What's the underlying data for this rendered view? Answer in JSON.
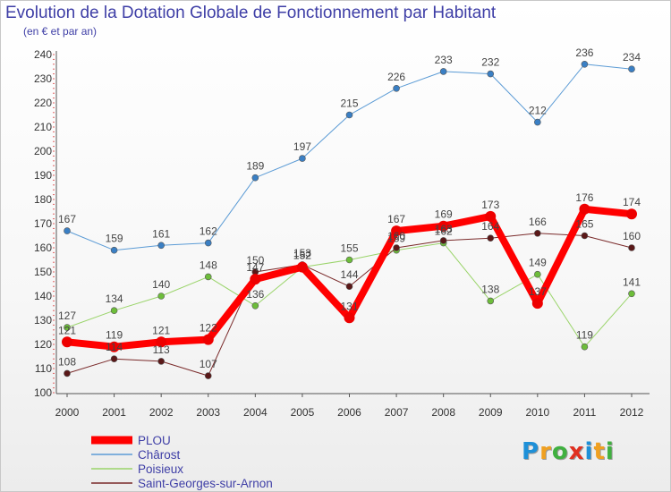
{
  "title": "Evolution de la Dotation Globale de Fonctionnement par Habitant",
  "subtitle": "(en € et par an)",
  "logo": {
    "text": "Proxiti",
    "letters": [
      {
        "ch": "P",
        "color": "#1e90d8"
      },
      {
        "ch": "r",
        "color": "#f0a020"
      },
      {
        "ch": "o",
        "color": "#40b040"
      },
      {
        "ch": "x",
        "color": "#e03020"
      },
      {
        "ch": "i",
        "color": "#1e90d8"
      },
      {
        "ch": "t",
        "color": "#f0a020"
      },
      {
        "ch": "i",
        "color": "#40b040"
      }
    ]
  },
  "chart_data": {
    "type": "line",
    "categories": [
      "2000",
      "2001",
      "2002",
      "2003",
      "2004",
      "2005",
      "2006",
      "2007",
      "2008",
      "2009",
      "2010",
      "2011",
      "2012"
    ],
    "ylim": [
      100,
      240
    ],
    "yticks": [
      100,
      110,
      120,
      130,
      140,
      150,
      160,
      170,
      180,
      190,
      200,
      210,
      220,
      230,
      240
    ],
    "grid": false,
    "legend_position": "bottom-left",
    "series": [
      {
        "name": "Chârost",
        "color": "#5b9bd5",
        "point_color": "#3a7fc4",
        "width": 1,
        "values": [
          167,
          159,
          161,
          162,
          189,
          197,
          215,
          226,
          233,
          232,
          212,
          236,
          234
        ]
      },
      {
        "name": "Poisieux",
        "color": "#9ad46a",
        "point_color": "#6dbd3a",
        "width": 1,
        "values": [
          127,
          134,
          140,
          148,
          136,
          152,
          155,
          159,
          162,
          138,
          149,
          119,
          141
        ]
      },
      {
        "name": "Saint-Georges-sur-Arnon",
        "color": "#7a2a2a",
        "point_color": "#5a1818",
        "width": 1,
        "values": [
          108,
          114,
          113,
          107,
          150,
          153,
          144,
          160,
          163,
          164,
          166,
          165,
          160
        ]
      },
      {
        "name": "PLOU",
        "color": "#ff0000",
        "point_color": "#ee0000",
        "width": 8,
        "values": [
          121,
          119,
          121,
          122,
          147,
          152,
          131,
          167,
          169,
          173,
          137,
          176,
          174
        ]
      }
    ],
    "legend_order": [
      "PLOU",
      "Chârost",
      "Poisieux",
      "Saint-Georges-sur-Arnon"
    ]
  }
}
